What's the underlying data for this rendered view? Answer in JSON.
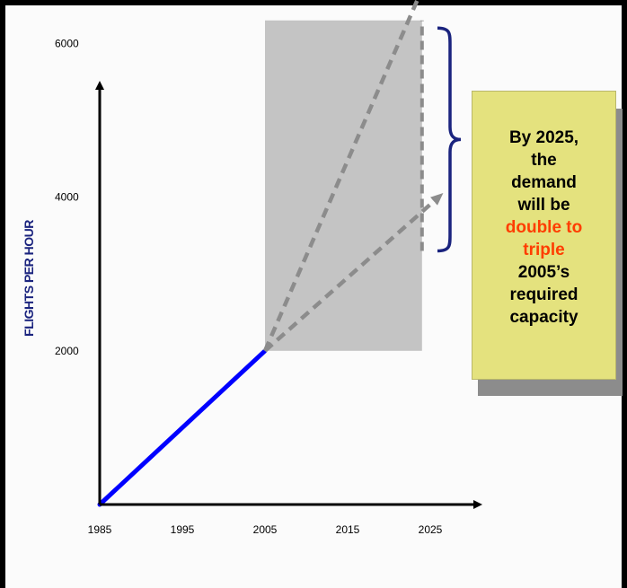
{
  "chart_data": {
    "type": "line",
    "title": "",
    "ylabel": "FLIGHTS PER HOUR",
    "xlabel": "",
    "x_ticks": [
      "1985",
      "1995",
      "2005",
      "2015",
      "2025"
    ],
    "y_ticks": [
      "2000",
      "4000",
      "6000"
    ],
    "xlim": [
      1985,
      2030
    ],
    "ylim": [
      0,
      7500
    ],
    "series": [
      {
        "values": [
          [
            1985,
            0
          ],
          [
            2005,
            2000
          ]
        ],
        "style": "solid",
        "color": "#0000ff"
      }
    ],
    "projections": [
      {
        "values": [
          [
            2005,
            2000
          ],
          [
            2026,
            4000
          ]
        ],
        "style": "dashed",
        "color": "#8c8c8c"
      },
      {
        "values": [
          [
            2005,
            2000
          ],
          [
            2026,
            7200
          ]
        ],
        "style": "dashed",
        "color": "#8c8c8c"
      }
    ],
    "vertical_marker": {
      "x": 2024,
      "y_range": [
        3300,
        6300
      ],
      "style": "dashed"
    },
    "shaded_region": {
      "x_range": [
        2005,
        2024
      ],
      "y_range": [
        2000,
        6300
      ],
      "color": "#c4c4c4"
    },
    "brace": {
      "x": 2025,
      "y_range": [
        3300,
        6200
      ],
      "color": "#1a237e"
    },
    "grid": false,
    "legend": "none"
  },
  "callout": {
    "lines": [
      "By 2025,",
      "the",
      "demand",
      "will be",
      "double to",
      "triple",
      "2005’s",
      "required",
      "capacity"
    ],
    "highlight_color": "#ff3d00",
    "background": "#e4e27e"
  }
}
